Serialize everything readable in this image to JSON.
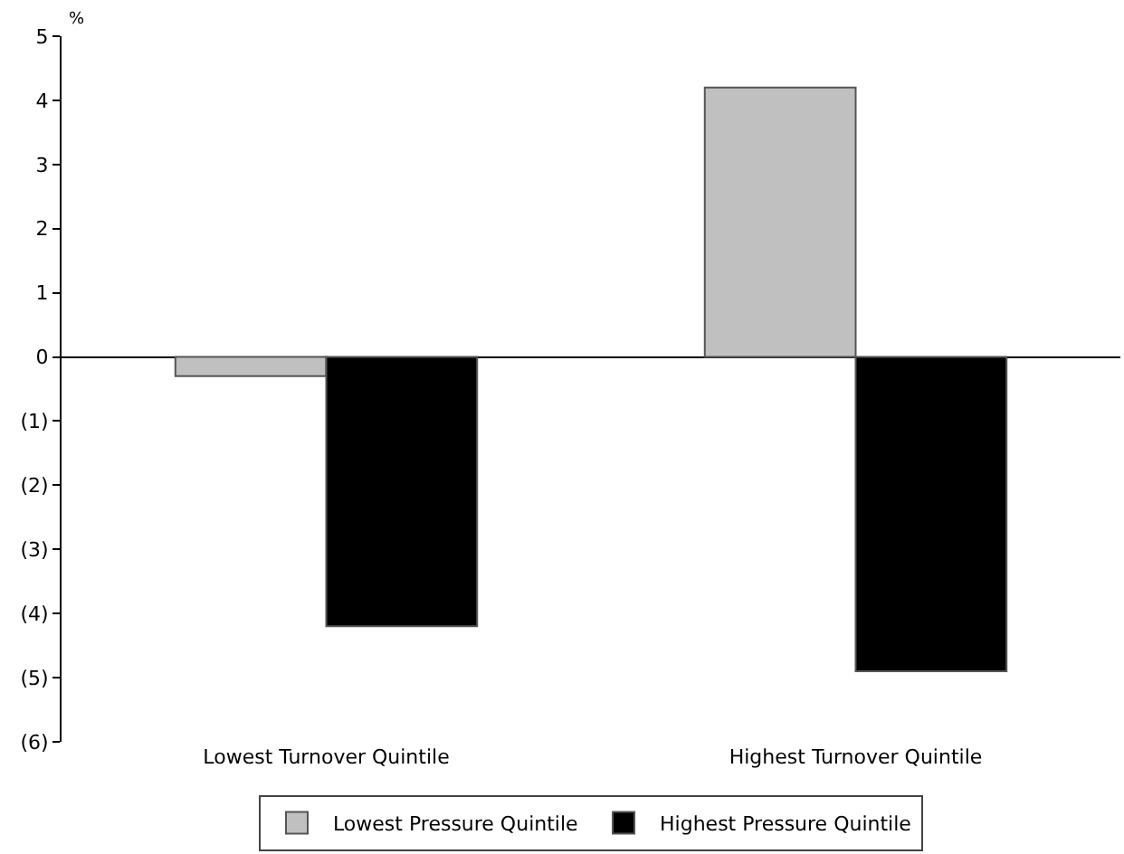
{
  "chart_data": {
    "type": "bar",
    "ylabel": "%",
    "categories": [
      "Lowest Turnover Quintile",
      "Highest Turnover Quintile"
    ],
    "series": [
      {
        "name": "Lowest Pressure Quintile",
        "color": "#c0c0c0",
        "values": [
          -0.3,
          4.2
        ]
      },
      {
        "name": "Highest Pressure Quintile",
        "color": "#000000",
        "values": [
          -4.2,
          -4.9
        ]
      }
    ],
    "ylim": [
      -6,
      5
    ],
    "yticks": [
      {
        "value": -6,
        "label": "(6)"
      },
      {
        "value": -5,
        "label": "(5)"
      },
      {
        "value": -4,
        "label": "(4)"
      },
      {
        "value": -3,
        "label": "(3)"
      },
      {
        "value": -2,
        "label": "(2)"
      },
      {
        "value": -1,
        "label": "(1)"
      },
      0,
      1,
      2,
      3,
      4,
      5
    ],
    "legend": "bottom"
  }
}
